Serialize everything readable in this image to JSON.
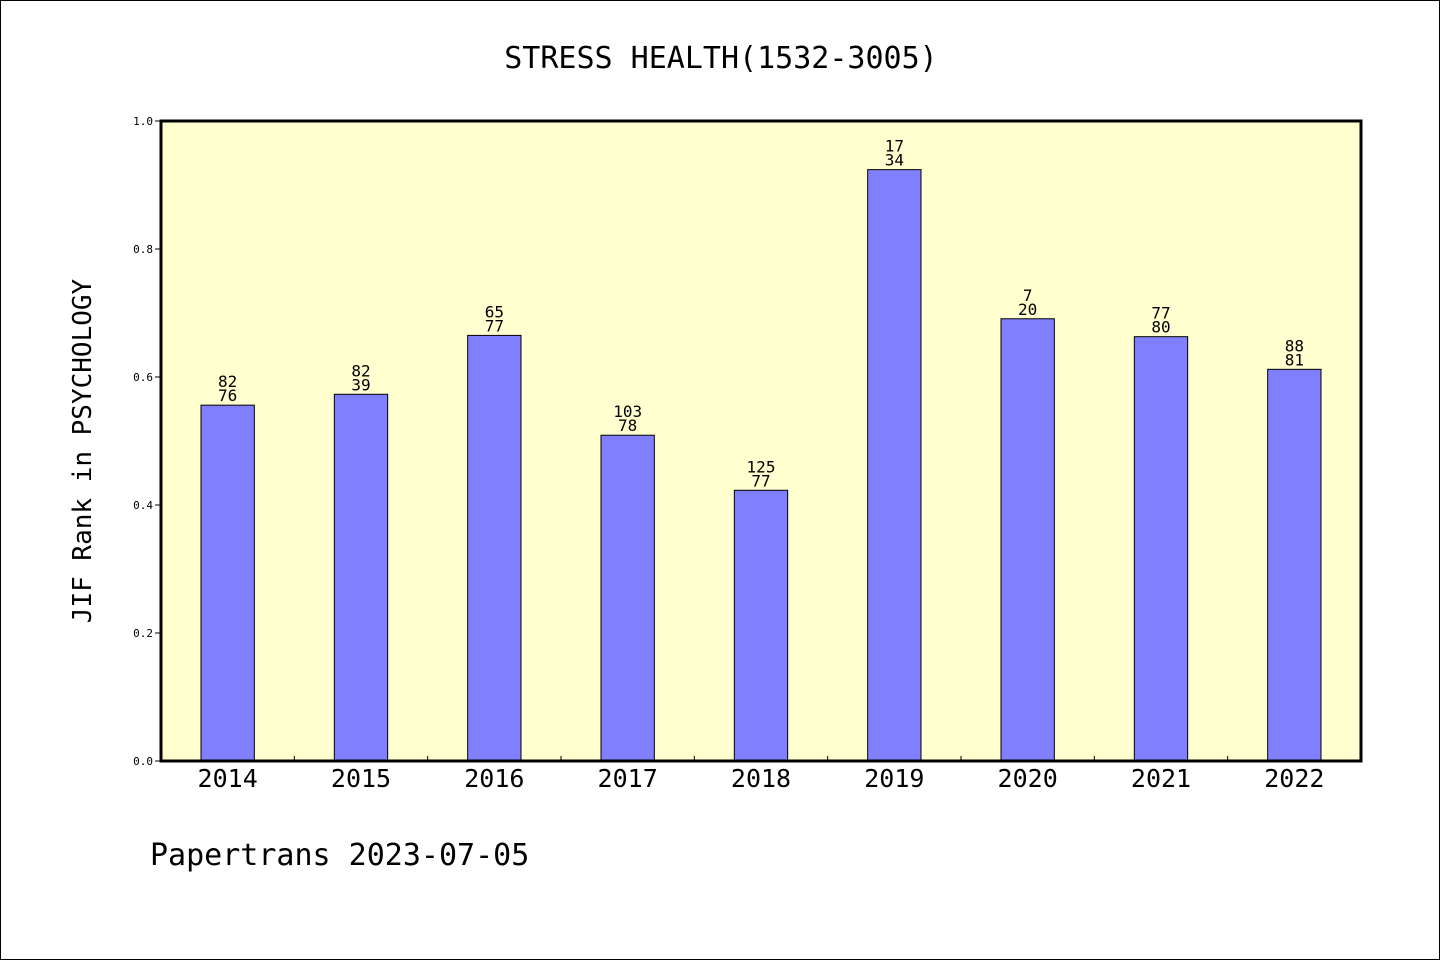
{
  "chart_data": {
    "type": "bar",
    "title": "STRESS HEALTH(1532-3005)",
    "xlabel": "",
    "ylabel": "JIF Rank in PSYCHOLOGY",
    "ylim": [
      0.0,
      1.0
    ],
    "yticks": [
      "0.0",
      "0.2",
      "0.4",
      "0.6",
      "0.8",
      "1.0"
    ],
    "categories": [
      "2014",
      "2015",
      "2016",
      "2017",
      "2018",
      "2019",
      "2020",
      "2021",
      "2022"
    ],
    "values": [
      0.556,
      0.573,
      0.665,
      0.509,
      0.423,
      0.924,
      0.691,
      0.663,
      0.612
    ],
    "bar_labels": [
      [
        "82",
        "76"
      ],
      [
        "82",
        "39"
      ],
      [
        "65",
        "77"
      ],
      [
        "103",
        "78"
      ],
      [
        "125",
        "77"
      ],
      [
        "17",
        "34"
      ],
      [
        "7",
        "20"
      ],
      [
        "77",
        "80"
      ],
      [
        "88",
        "81"
      ]
    ],
    "grid": false,
    "legend": "none",
    "colors": {
      "bar": "#8080ff",
      "plot_background": "#ffffd0"
    }
  },
  "footer": {
    "text": "Papertrans 2023-07-05"
  }
}
